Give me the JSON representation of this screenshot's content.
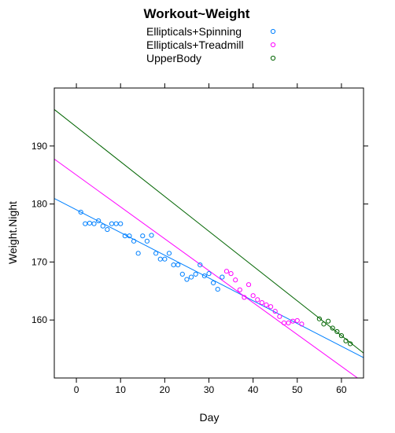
{
  "chart_data": {
    "type": "scatter",
    "title": "Workout~Weight",
    "xlabel": "Day",
    "ylabel": "Weight.Night",
    "xlim": [
      -5,
      65
    ],
    "ylim": [
      150,
      200
    ],
    "xticks": [
      0,
      10,
      20,
      30,
      40,
      50,
      60
    ],
    "yticks": [
      160,
      170,
      180,
      190
    ],
    "grid": false,
    "legend_position": "top",
    "series": [
      {
        "name": "Ellipticals+Spinning",
        "color": "#0080ff",
        "x": [
          1,
          2,
          3,
          4,
          5,
          6,
          7,
          8,
          9,
          10,
          11,
          12,
          13,
          14,
          15,
          16,
          17,
          18,
          19,
          20,
          21,
          22,
          23,
          24,
          25,
          26,
          27,
          28,
          29,
          30,
          31,
          32,
          33
        ],
        "y": [
          178.6,
          176.6,
          176.7,
          176.6,
          177.1,
          176.2,
          175.6,
          176.6,
          176.6,
          176.6,
          174.5,
          174.5,
          173.6,
          171.5,
          174.5,
          173.6,
          174.6,
          171.5,
          170.5,
          170.5,
          171.5,
          169.5,
          169.5,
          167.9,
          167.0,
          167.4,
          167.9,
          169.5,
          167.6,
          168.0,
          166.4,
          165.3,
          167.4
        ],
        "fit": {
          "intercept": 179.0,
          "slope": -0.392
        }
      },
      {
        "name": "Ellipticals+Treadmill",
        "color": "#ff00ff",
        "x": [
          34,
          35,
          36,
          37,
          38,
          39,
          40,
          41,
          42,
          43,
          44,
          45,
          46,
          47,
          48,
          49,
          50,
          51
        ],
        "y": [
          168.4,
          168.0,
          166.9,
          165.2,
          163.9,
          166.1,
          164.2,
          163.5,
          163.0,
          162.6,
          162.3,
          161.5,
          160.6,
          159.5,
          159.5,
          159.8,
          159.9,
          159.3
        ],
        "fit": {
          "intercept": 185.0,
          "slope": -0.55
        }
      },
      {
        "name": "UpperBody",
        "color": "#006400",
        "x": [
          55,
          56,
          57,
          58,
          59,
          60,
          61,
          62
        ],
        "y": [
          160.2,
          159.3,
          159.8,
          158.6,
          158.0,
          157.3,
          156.4,
          155.9
        ],
        "fit": {
          "intercept": 193.3,
          "slope": -0.6
        }
      }
    ]
  }
}
